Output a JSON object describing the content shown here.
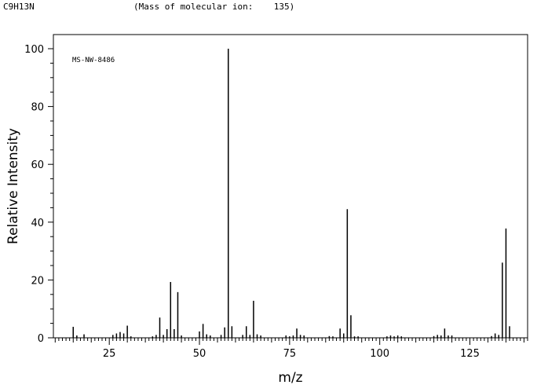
{
  "header": {
    "formula": "C9H13N",
    "molecular_ion": "(Mass of molecular ion:    135)"
  },
  "chart_data": {
    "type": "bar",
    "title": "",
    "annotation": "MS-NW-8486",
    "xlabel": "m/z",
    "ylabel": "Relative Intensity",
    "xlim": [
      9.5,
      141
    ],
    "ylim": [
      0,
      100
    ],
    "xticks": [
      25,
      50,
      75,
      100,
      125
    ],
    "yticks": [
      0,
      20,
      40,
      60,
      80,
      100
    ],
    "grid": false,
    "peaks": [
      [
        15,
        3.8
      ],
      [
        16,
        0.8
      ],
      [
        18,
        1.2
      ],
      [
        26,
        1
      ],
      [
        27,
        1.5
      ],
      [
        28,
        2
      ],
      [
        29,
        1.5
      ],
      [
        30,
        4.2
      ],
      [
        31,
        0.5
      ],
      [
        37,
        0.5
      ],
      [
        38,
        1
      ],
      [
        39,
        7
      ],
      [
        40,
        1
      ],
      [
        41,
        3
      ],
      [
        42,
        19.3
      ],
      [
        43,
        3
      ],
      [
        44,
        15.8
      ],
      [
        45,
        0.8
      ],
      [
        50,
        2.2
      ],
      [
        51,
        4.8
      ],
      [
        52,
        1.2
      ],
      [
        53,
        0.8
      ],
      [
        56,
        1
      ],
      [
        57,
        3.6
      ],
      [
        58,
        100
      ],
      [
        59,
        4
      ],
      [
        62,
        1
      ],
      [
        63,
        4
      ],
      [
        64,
        1
      ],
      [
        65,
        12.8
      ],
      [
        66,
        1.2
      ],
      [
        67,
        0.8
      ],
      [
        74,
        0.8
      ],
      [
        75,
        0.5
      ],
      [
        76,
        0.8
      ],
      [
        77,
        3.2
      ],
      [
        78,
        1
      ],
      [
        79,
        0.8
      ],
      [
        86,
        0.6
      ],
      [
        87,
        0.5
      ],
      [
        89,
        3.2
      ],
      [
        90,
        1.5
      ],
      [
        91,
        44.5
      ],
      [
        92,
        7.8
      ],
      [
        93,
        0.5
      ],
      [
        94,
        0.5
      ],
      [
        102,
        0.5
      ],
      [
        103,
        0.8
      ],
      [
        104,
        0.5
      ],
      [
        105,
        0.8
      ],
      [
        106,
        0.5
      ],
      [
        115,
        0.6
      ],
      [
        116,
        1
      ],
      [
        117,
        0.8
      ],
      [
        118,
        3.2
      ],
      [
        119,
        0.8
      ],
      [
        120,
        0.8
      ],
      [
        131,
        0.6
      ],
      [
        132,
        1.5
      ],
      [
        133,
        1
      ],
      [
        134,
        26
      ],
      [
        135,
        37.8
      ],
      [
        136,
        4
      ]
    ]
  }
}
